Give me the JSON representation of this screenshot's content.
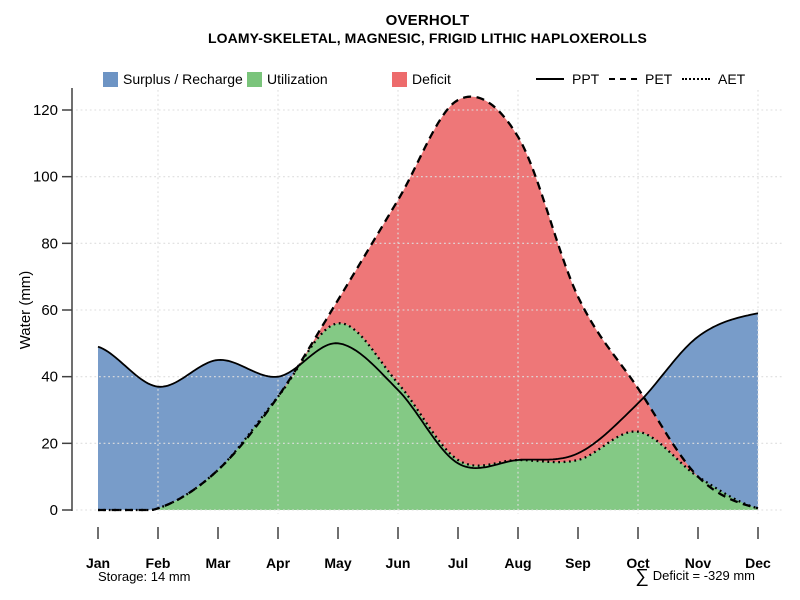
{
  "header": {
    "title": "OVERHOLT",
    "subtitle": "LOAMY-SKELETAL, MAGNESIC, FRIGID LITHIC HAPLOXEROLLS"
  },
  "legend": {
    "fill_items": [
      {
        "label": "Surplus / Recharge",
        "color_key": "surplus"
      },
      {
        "label": "Utilization",
        "color_key": "utilization"
      },
      {
        "label": "Deficit",
        "color_key": "deficit"
      }
    ],
    "line_items": [
      {
        "label": "PPT",
        "style": "solid"
      },
      {
        "label": "PET",
        "style": "dashed"
      },
      {
        "label": "AET",
        "style": "dotted"
      }
    ]
  },
  "chart_data": {
    "type": "area",
    "title": "OVERHOLT",
    "subtitle": "LOAMY-SKELETAL, MAGNESIC, FRIGID LITHIC HAPLOXEROLLS",
    "ylabel": "Water (mm)",
    "xlabel": "",
    "categories": [
      "Jan",
      "Feb",
      "Mar",
      "Apr",
      "May",
      "Jun",
      "Jul",
      "Aug",
      "Sep",
      "Oct",
      "Nov",
      "Dec"
    ],
    "series": [
      {
        "name": "PPT",
        "style": "solid",
        "values": [
          49,
          37,
          45,
          40,
          50,
          36,
          14,
          15,
          17,
          32,
          52,
          59
        ]
      },
      {
        "name": "PET",
        "style": "dashed",
        "values": [
          0,
          0.5,
          12,
          34,
          63,
          93,
          123,
          112,
          64,
          36.5,
          10,
          0.5
        ]
      },
      {
        "name": "AET",
        "style": "dotted",
        "values": [
          0,
          0.5,
          12,
          34,
          56,
          38,
          15,
          15,
          15,
          23.5,
          10,
          0.5
        ]
      }
    ],
    "fills": [
      {
        "name": "Surplus / Recharge",
        "upper": "PPT",
        "lower": "PET",
        "color_key": "surplus"
      },
      {
        "name": "Utilization",
        "upper": "AET",
        "lower": "zero",
        "color_key": "utilization"
      },
      {
        "name": "Deficit",
        "upper": "PET",
        "lower": "AET",
        "color_key": "deficit"
      }
    ],
    "ylim": [
      0,
      120
    ],
    "yticks": [
      0,
      20,
      40,
      60,
      80,
      100,
      120
    ],
    "grid": "dotted",
    "legend_position": "top"
  },
  "annotations": {
    "storage": "Storage: 14 mm",
    "sigma": "∑",
    "deficit": "Deficit = -329 mm"
  },
  "colors": {
    "surplus": "#6D94C4",
    "utilization": "#7AC47B",
    "deficit": "#ED6B6C",
    "line": "#000000",
    "grid": "#DEDEDE",
    "axis": "#404040",
    "text": "#000000"
  }
}
